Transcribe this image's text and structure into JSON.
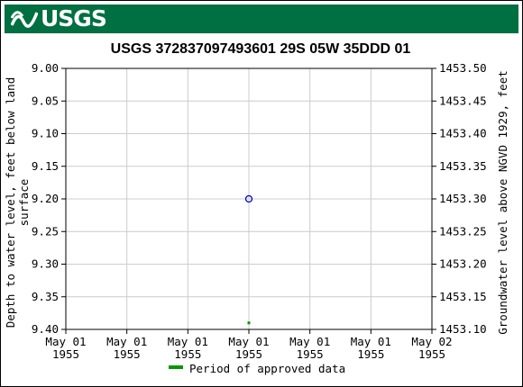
{
  "banner": {
    "logo_text": "USGS",
    "logo_icon": "usgs-wave-icon",
    "color": "#006f41"
  },
  "chart_data": {
    "type": "scatter",
    "title": "USGS 372837097493601 29S 05W 35DDD 01",
    "ylabel_left": "Depth to water level, feet below land surface",
    "ylabel_right": "Groundwater level above NGVD 1929, feet",
    "ylim_left": [
      9.0,
      9.4
    ],
    "ylim_right": [
      1453.1,
      1453.5
    ],
    "y_inverted": true,
    "left_ticks": [
      "9.00",
      "9.05",
      "9.10",
      "9.15",
      "9.20",
      "9.25",
      "9.30",
      "9.35",
      "9.40"
    ],
    "right_ticks": [
      "1453.50",
      "1453.45",
      "1453.40",
      "1453.35",
      "1453.30",
      "1453.25",
      "1453.20",
      "1453.15",
      "1453.10"
    ],
    "x_ticks": [
      {
        "line1": "May 01",
        "line2": "1955"
      },
      {
        "line1": "May 01",
        "line2": "1955"
      },
      {
        "line1": "May 01",
        "line2": "1955"
      },
      {
        "line1": "May 01",
        "line2": "1955"
      },
      {
        "line1": "May 01",
        "line2": "1955"
      },
      {
        "line1": "May 01",
        "line2": "1955"
      },
      {
        "line1": "May 02",
        "line2": "1955"
      }
    ],
    "grid": true,
    "series": [
      {
        "points": [
          {
            "x": "1955-05-01T12:00",
            "y": 9.2
          }
        ],
        "marker": "circle-open",
        "color": "#0000cc"
      }
    ],
    "approved_marks": [
      {
        "x": "1955-05-01T12:00",
        "y": 9.39
      }
    ],
    "legend": {
      "label": "Period of approved data",
      "color": "#009900",
      "placement": "bottom-center"
    }
  }
}
